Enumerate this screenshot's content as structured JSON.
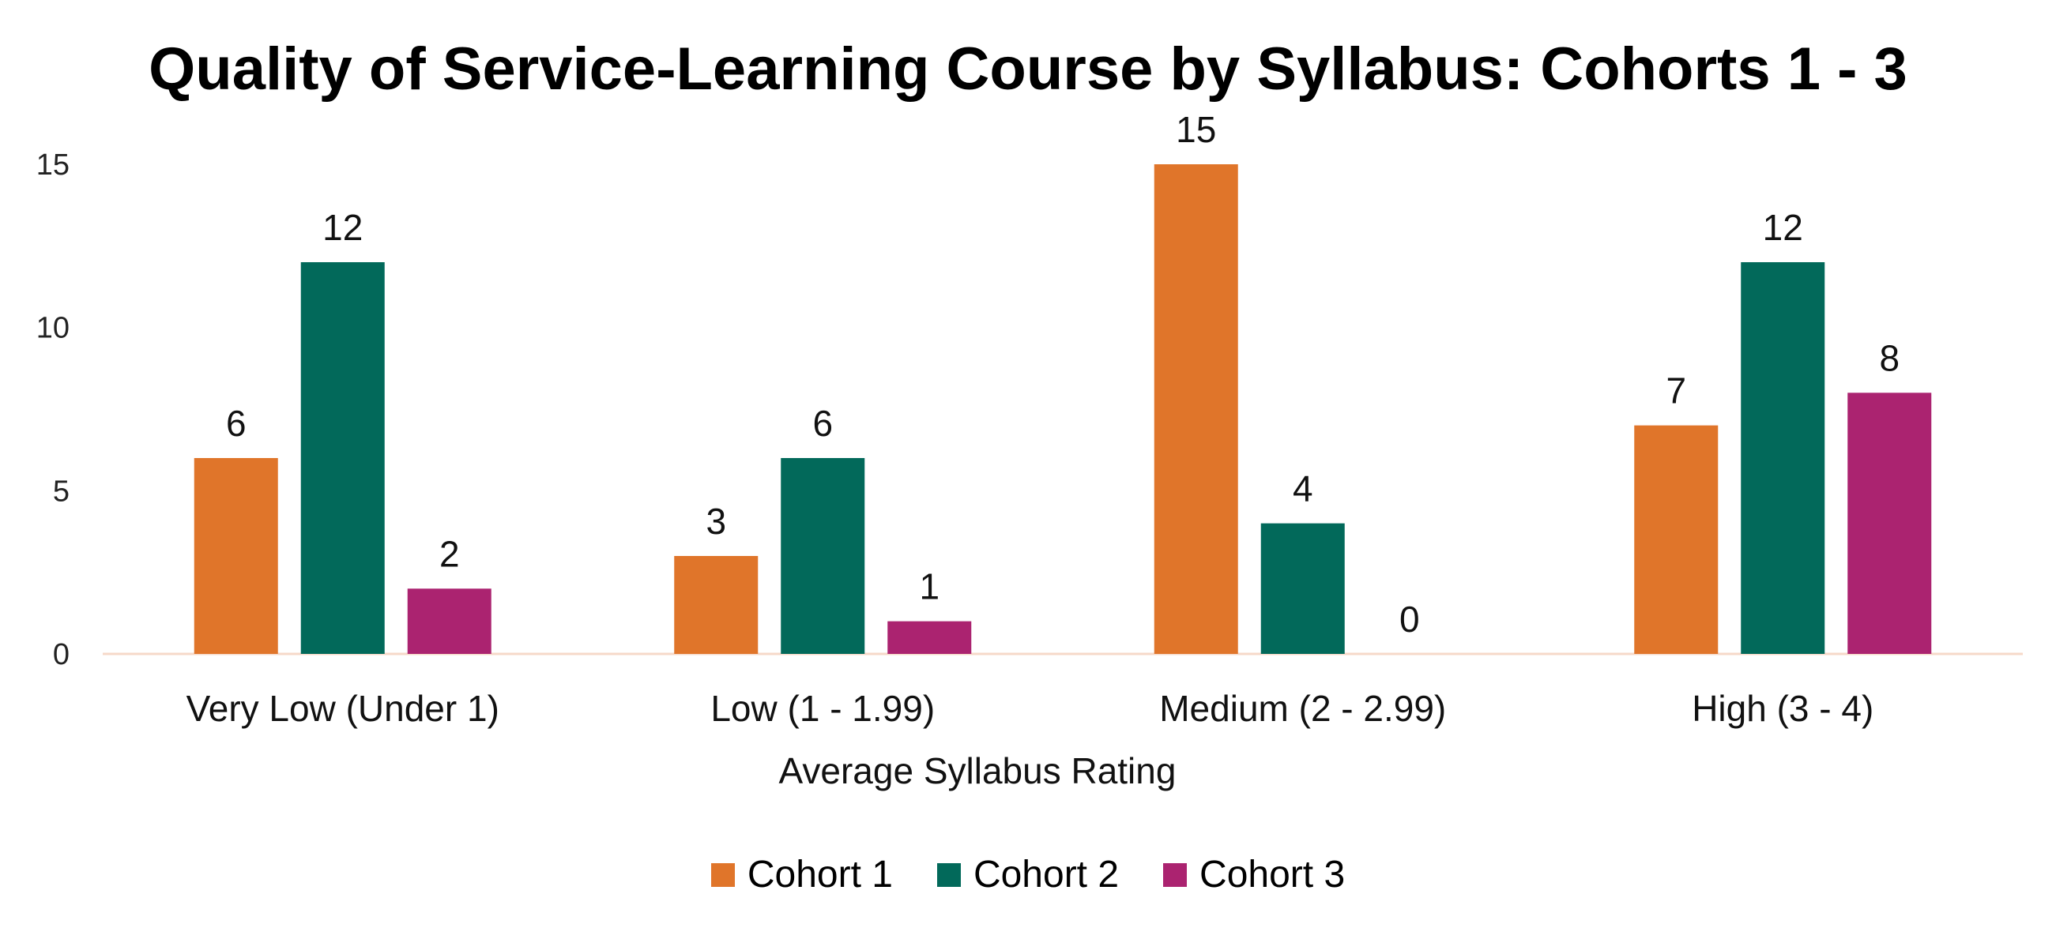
{
  "chart_data": {
    "type": "bar",
    "title": "Quality of Service-Learning Course by Syllabus: Cohorts 1 - 3",
    "xlabel": "Average Syllabus Rating",
    "ylabel": "",
    "categories": [
      "Very Low (Under 1)",
      "Low (1 - 1.99)",
      "Medium (2 - 2.99)",
      "High (3 - 4)"
    ],
    "series": [
      {
        "name": "Cohort 1",
        "color": "#E0752A",
        "values": [
          6,
          3,
          15,
          7
        ]
      },
      {
        "name": "Cohort 2",
        "color": "#02695A",
        "values": [
          12,
          6,
          4,
          12
        ]
      },
      {
        "name": "Cohort 3",
        "color": "#AB2370",
        "values": [
          2,
          1,
          0,
          8
        ]
      }
    ],
    "ylim": [
      0,
      15
    ],
    "yticks": [
      0,
      5,
      10,
      15
    ],
    "grid": false,
    "data_labels": true,
    "legend_position": "bottom"
  }
}
